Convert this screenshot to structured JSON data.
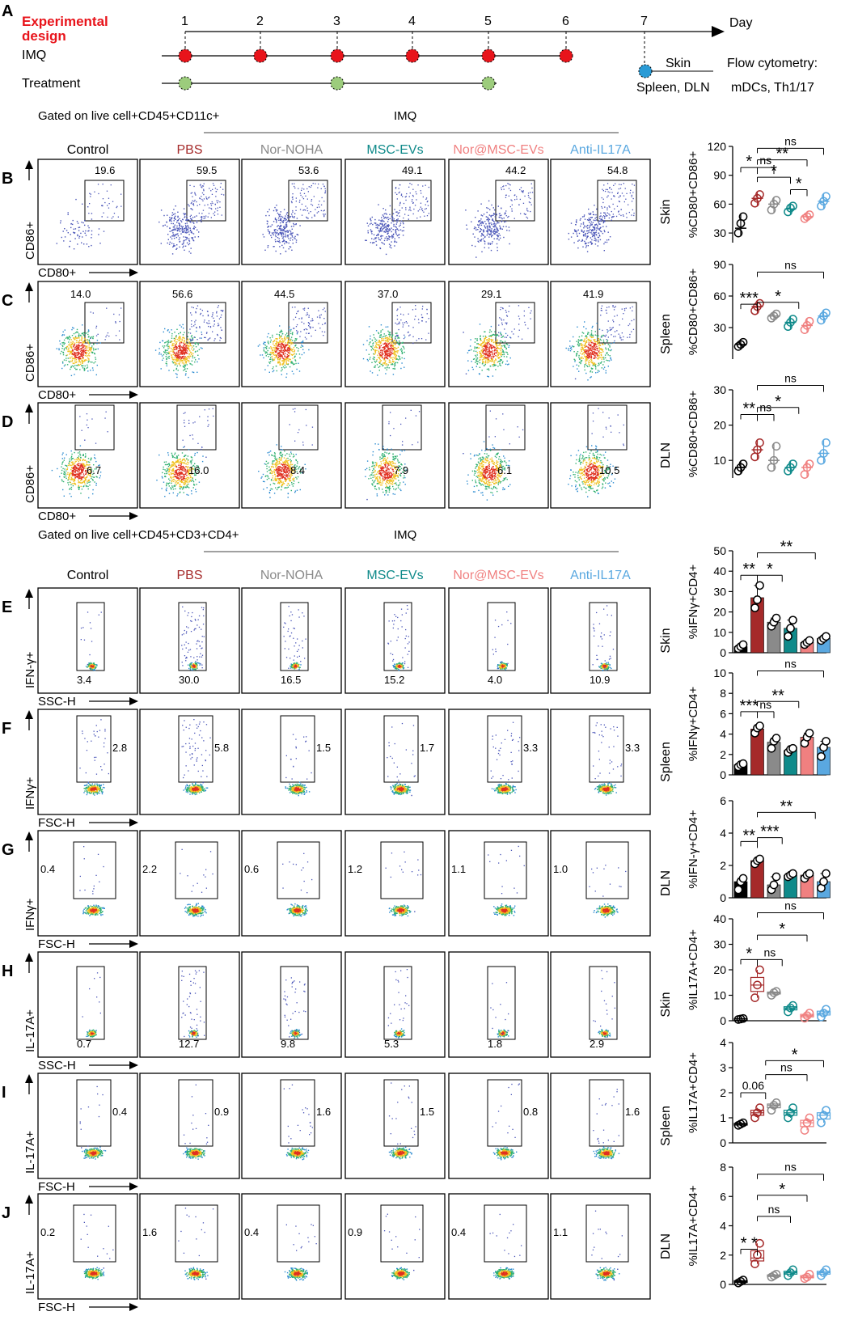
{
  "panel_a": {
    "letter": "A",
    "title_line1": "Experimental",
    "title_line2": "design",
    "days": [
      "1",
      "2",
      "3",
      "4",
      "5",
      "6",
      "7"
    ],
    "day_label": "Day",
    "imq_label": "IMQ",
    "treatment_label": "Treatment",
    "imq_days": [
      1,
      2,
      3,
      4,
      5,
      6
    ],
    "treatment_days": [
      1,
      3,
      5
    ],
    "endpoint_day": 7,
    "skin_label": "Skin",
    "spleen_dln_label": "Spleen, DLN",
    "flow_label": "Flow cytometry:",
    "flow_targets": "mDCs, Th1/17",
    "colors": {
      "title": "#e8141b",
      "imq_dot": "#e8141b",
      "treatment_dot": "#9ccc7c",
      "endpoint_dot": "#2a9bd6"
    }
  },
  "sections": [
    {
      "gate": "Gated on live cell+CD45+CD11c+",
      "imq": "IMQ"
    },
    {
      "gate": "Gated on live cell+CD45+CD3+CD4+",
      "imq": "IMQ"
    }
  ],
  "groups": [
    {
      "name": "Control",
      "color": "#000000"
    },
    {
      "name": "PBS",
      "color": "#a52a2a"
    },
    {
      "name": "Nor-NOHA",
      "color": "#8a8a8a"
    },
    {
      "name": "MSC-EVs",
      "color": "#0f8a8a"
    },
    {
      "name": "Nor@MSC-EVs",
      "color": "#f08080"
    },
    {
      "name": "Anti-IL17A",
      "color": "#5aa8e0"
    }
  ],
  "rows": [
    {
      "letter": "B",
      "tissue": "Skin",
      "ylabel": "CD86+",
      "xlabel": "CD80+",
      "values": [
        "19.6",
        "59.5",
        "53.6",
        "49.1",
        "44.2",
        "54.8"
      ]
    },
    {
      "letter": "C",
      "tissue": "Spleen",
      "ylabel": "CD86+",
      "xlabel": "CD80+",
      "values": [
        "14.0",
        "56.6",
        "44.5",
        "37.0",
        "29.1",
        "41.9"
      ]
    },
    {
      "letter": "D",
      "tissue": "DLN",
      "ylabel": "CD86+",
      "xlabel": "CD80+",
      "values": [
        "6.7",
        "16.0",
        "8.4",
        "7.9",
        "6.1",
        "10.5"
      ]
    },
    {
      "letter": "E",
      "tissue": "Skin",
      "ylabel": "IFN-γ+",
      "xlabel": "SSC-H",
      "values": [
        "3.4",
        "30.0",
        "16.5",
        "15.2",
        "4.0",
        "10.9"
      ]
    },
    {
      "letter": "F",
      "tissue": "Spleen",
      "ylabel": "IFNγ+",
      "xlabel": "FSC-H",
      "values": [
        "2.8",
        "5.8",
        "1.5",
        "1.7",
        "3.3",
        "3.3"
      ]
    },
    {
      "letter": "G",
      "tissue": "DLN",
      "ylabel": "IFNγ+",
      "xlabel": "FSC-H",
      "values": [
        "0.4",
        "2.2",
        "0.6",
        "1.2",
        "1.1",
        "1.0"
      ]
    },
    {
      "letter": "H",
      "tissue": "Skin",
      "ylabel": "IL-17A+",
      "xlabel": "SSC-H",
      "values": [
        "0.7",
        "12.7",
        "9.8",
        "5.3",
        "1.8",
        "2.9"
      ]
    },
    {
      "letter": "I",
      "tissue": "Spleen",
      "ylabel": "IL-17A+",
      "xlabel": "FSC-H",
      "values": [
        "0.4",
        "0.9",
        "1.6",
        "1.5",
        "0.8",
        "1.6"
      ]
    },
    {
      "letter": "J",
      "tissue": "DLN",
      "ylabel": "IL-17A+",
      "xlabel": "FSC-H",
      "values": [
        "0.2",
        "1.6",
        "0.4",
        "0.9",
        "0.4",
        "1.1"
      ]
    }
  ],
  "chart_data": [
    {
      "panel": "B",
      "type": "scatter",
      "tissue": "Skin",
      "ylabel": "%CD80+CD86+",
      "ylim": [
        20,
        120
      ],
      "yticks": [
        30,
        60,
        90,
        120
      ],
      "categories": [
        "Control",
        "PBS",
        "Nor-NOHA",
        "MSC-EVs",
        "Nor@MSC-EVs",
        "Anti-IL17A"
      ],
      "means": [
        35,
        66,
        60,
        55,
        47,
        63
      ],
      "points": [
        [
          30,
          40,
          47
        ],
        [
          61,
          66,
          70
        ],
        [
          54,
          60,
          64
        ],
        [
          52,
          56,
          58
        ],
        [
          45,
          47,
          49
        ],
        [
          58,
          63,
          68
        ]
      ],
      "annotations": [
        "*",
        "ns",
        "*",
        "**",
        "*",
        "ns"
      ]
    },
    {
      "panel": "C",
      "type": "scatter",
      "tissue": "Spleen",
      "ylabel": "%CD80+CD86+",
      "ylim": [
        0,
        90
      ],
      "yticks": [
        30,
        60,
        90
      ],
      "categories": [
        "Control",
        "PBS",
        "Nor-NOHA",
        "MSC-EVs",
        "Nor@MSC-EVs",
        "Anti-IL17A"
      ],
      "means": [
        14,
        50,
        41,
        35,
        32,
        41
      ],
      "points": [
        [
          12,
          14,
          16
        ],
        [
          46,
          50,
          53
        ],
        [
          39,
          41,
          43
        ],
        [
          31,
          35,
          38
        ],
        [
          28,
          32,
          36
        ],
        [
          37,
          41,
          44
        ]
      ],
      "annotations": [
        "***",
        "*",
        "ns"
      ]
    },
    {
      "panel": "D",
      "type": "scatter",
      "tissue": "DLN",
      "ylabel": "%CD80+CD86+",
      "ylim": [
        5,
        30
      ],
      "yticks": [
        10,
        20,
        30
      ],
      "categories": [
        "Control",
        "PBS",
        "Nor-NOHA",
        "MSC-EVs",
        "Nor@MSC-EVs",
        "Anti-IL17A"
      ],
      "means": [
        8,
        13,
        10,
        8,
        8,
        12
      ],
      "points": [
        [
          7,
          8,
          9
        ],
        [
          11,
          13,
          15
        ],
        [
          8,
          10,
          14
        ],
        [
          7,
          8,
          9
        ],
        [
          6,
          8,
          9
        ],
        [
          10,
          12,
          15
        ]
      ],
      "annotations": [
        "**",
        "ns",
        "*",
        "ns"
      ]
    },
    {
      "panel": "E",
      "type": "bar",
      "tissue": "Skin",
      "ylabel": "%IFNγ+CD4+",
      "ylim": [
        0,
        50
      ],
      "yticks": [
        0,
        10,
        20,
        30,
        40,
        50
      ],
      "categories": [
        "Control",
        "PBS",
        "Nor-NOHA",
        "MSC-EVs",
        "Nor@MSC-EVs",
        "Anti-IL17A"
      ],
      "means": [
        3,
        27,
        15,
        12,
        5,
        7
      ],
      "points": [
        [
          2,
          3,
          4
        ],
        [
          22,
          26,
          33
        ],
        [
          13,
          15,
          17
        ],
        [
          8,
          12,
          16
        ],
        [
          4,
          5,
          6
        ],
        [
          6,
          7,
          8
        ]
      ],
      "annotations": [
        "**",
        "*",
        "**"
      ]
    },
    {
      "panel": "F",
      "type": "bar",
      "tissue": "Spleen",
      "ylabel": "%IFNγ+CD4+",
      "ylim": [
        0,
        10
      ],
      "yticks": [
        0,
        2,
        4,
        6,
        8,
        10
      ],
      "categories": [
        "Control",
        "PBS",
        "Nor-NOHA",
        "MSC-EVs",
        "Nor@MSC-EVs",
        "Anti-IL17A"
      ],
      "means": [
        1,
        4.5,
        3.2,
        2.4,
        3.7,
        2.7
      ],
      "points": [
        [
          0.8,
          1,
          1.1
        ],
        [
          4.1,
          4.6,
          4.8
        ],
        [
          2.6,
          3.3,
          3.6
        ],
        [
          2.2,
          2.5,
          2.6
        ],
        [
          3.1,
          3.7,
          4.1
        ],
        [
          1.8,
          2.7,
          3.3
        ]
      ],
      "annotations": [
        "ns",
        "***",
        "ns",
        "**"
      ]
    },
    {
      "panel": "G",
      "type": "bar",
      "tissue": "DLN",
      "ylabel": "%IFN-γ+CD4+",
      "ylim": [
        0,
        6
      ],
      "yticks": [
        0,
        2,
        4,
        6
      ],
      "categories": [
        "Control",
        "PBS",
        "Nor-NOHA",
        "MSC-EVs",
        "Nor@MSC-EVs",
        "Anti-IL17A"
      ],
      "means": [
        1,
        2.3,
        0.8,
        1.4,
        1.4,
        1.0
      ],
      "points": [
        [
          0.5,
          1,
          1.2
        ],
        [
          2.1,
          2.3,
          2.4
        ],
        [
          0.5,
          0.8,
          1.3
        ],
        [
          1.3,
          1.4,
          1.5
        ],
        [
          1.2,
          1.4,
          1.5
        ],
        [
          0.6,
          1.0,
          1.5
        ]
      ],
      "annotations": [
        "**",
        "***",
        "**"
      ]
    },
    {
      "panel": "H",
      "type": "box",
      "tissue": "Skin",
      "ylabel": "%IL17A+CD4+",
      "ylim": [
        0,
        40
      ],
      "yticks": [
        0,
        10,
        20,
        30,
        40
      ],
      "categories": [
        "Control",
        "PBS",
        "Nor-NOHA",
        "MSC-EVs",
        "Nor@MSC-EVs",
        "Anti-IL17A"
      ],
      "means": [
        0.7,
        14,
        11,
        5,
        2,
        3
      ],
      "points": [
        [
          0.5,
          0.7,
          0.9
        ],
        [
          9,
          14,
          20
        ],
        [
          10,
          11,
          11.5
        ],
        [
          3.5,
          5,
          6
        ],
        [
          1,
          2,
          3
        ],
        [
          1.5,
          3,
          4.5
        ]
      ],
      "annotations": [
        "ns",
        "*",
        "ns",
        "*"
      ]
    },
    {
      "panel": "I",
      "type": "box",
      "tissue": "Spleen",
      "ylabel": "%IL17A+CD4+",
      "ylim": [
        0,
        4
      ],
      "yticks": [
        0,
        1,
        2,
        3,
        4
      ],
      "categories": [
        "Control",
        "PBS",
        "Nor-NOHA",
        "MSC-EVs",
        "Nor@MSC-EVs",
        "Anti-IL17A"
      ],
      "means": [
        0.75,
        1.2,
        1.5,
        1.2,
        0.8,
        1.1
      ],
      "points": [
        [
          0.7,
          0.75,
          0.8
        ],
        [
          1.0,
          1.2,
          1.4
        ],
        [
          1.3,
          1.5,
          1.6
        ],
        [
          1.0,
          1.2,
          1.4
        ],
        [
          0.5,
          0.8,
          1.0
        ],
        [
          0.8,
          1.1,
          1.3
        ]
      ],
      "annotations": [
        "*",
        "ns",
        "0.06"
      ]
    },
    {
      "panel": "J",
      "type": "box",
      "tissue": "DLN",
      "ylabel": "%IL17A+CD4+",
      "ylim": [
        0,
        8
      ],
      "yticks": [
        0,
        2,
        4,
        6,
        8
      ],
      "categories": [
        "Control",
        "PBS",
        "Nor-NOHA",
        "MSC-EVs",
        "Nor@MSC-EVs",
        "Anti-IL17A"
      ],
      "means": [
        0.2,
        1.8,
        0.6,
        0.8,
        0.5,
        0.8
      ],
      "points": [
        [
          0.1,
          0.2,
          0.3
        ],
        [
          1.4,
          2.0,
          2.8
        ],
        [
          0.5,
          0.6,
          0.7
        ],
        [
          0.6,
          0.8,
          1.0
        ],
        [
          0.4,
          0.5,
          0.7
        ],
        [
          0.6,
          0.8,
          1.0
        ]
      ],
      "annotations": [
        "ns",
        "*",
        "ns",
        "* *"
      ]
    }
  ]
}
